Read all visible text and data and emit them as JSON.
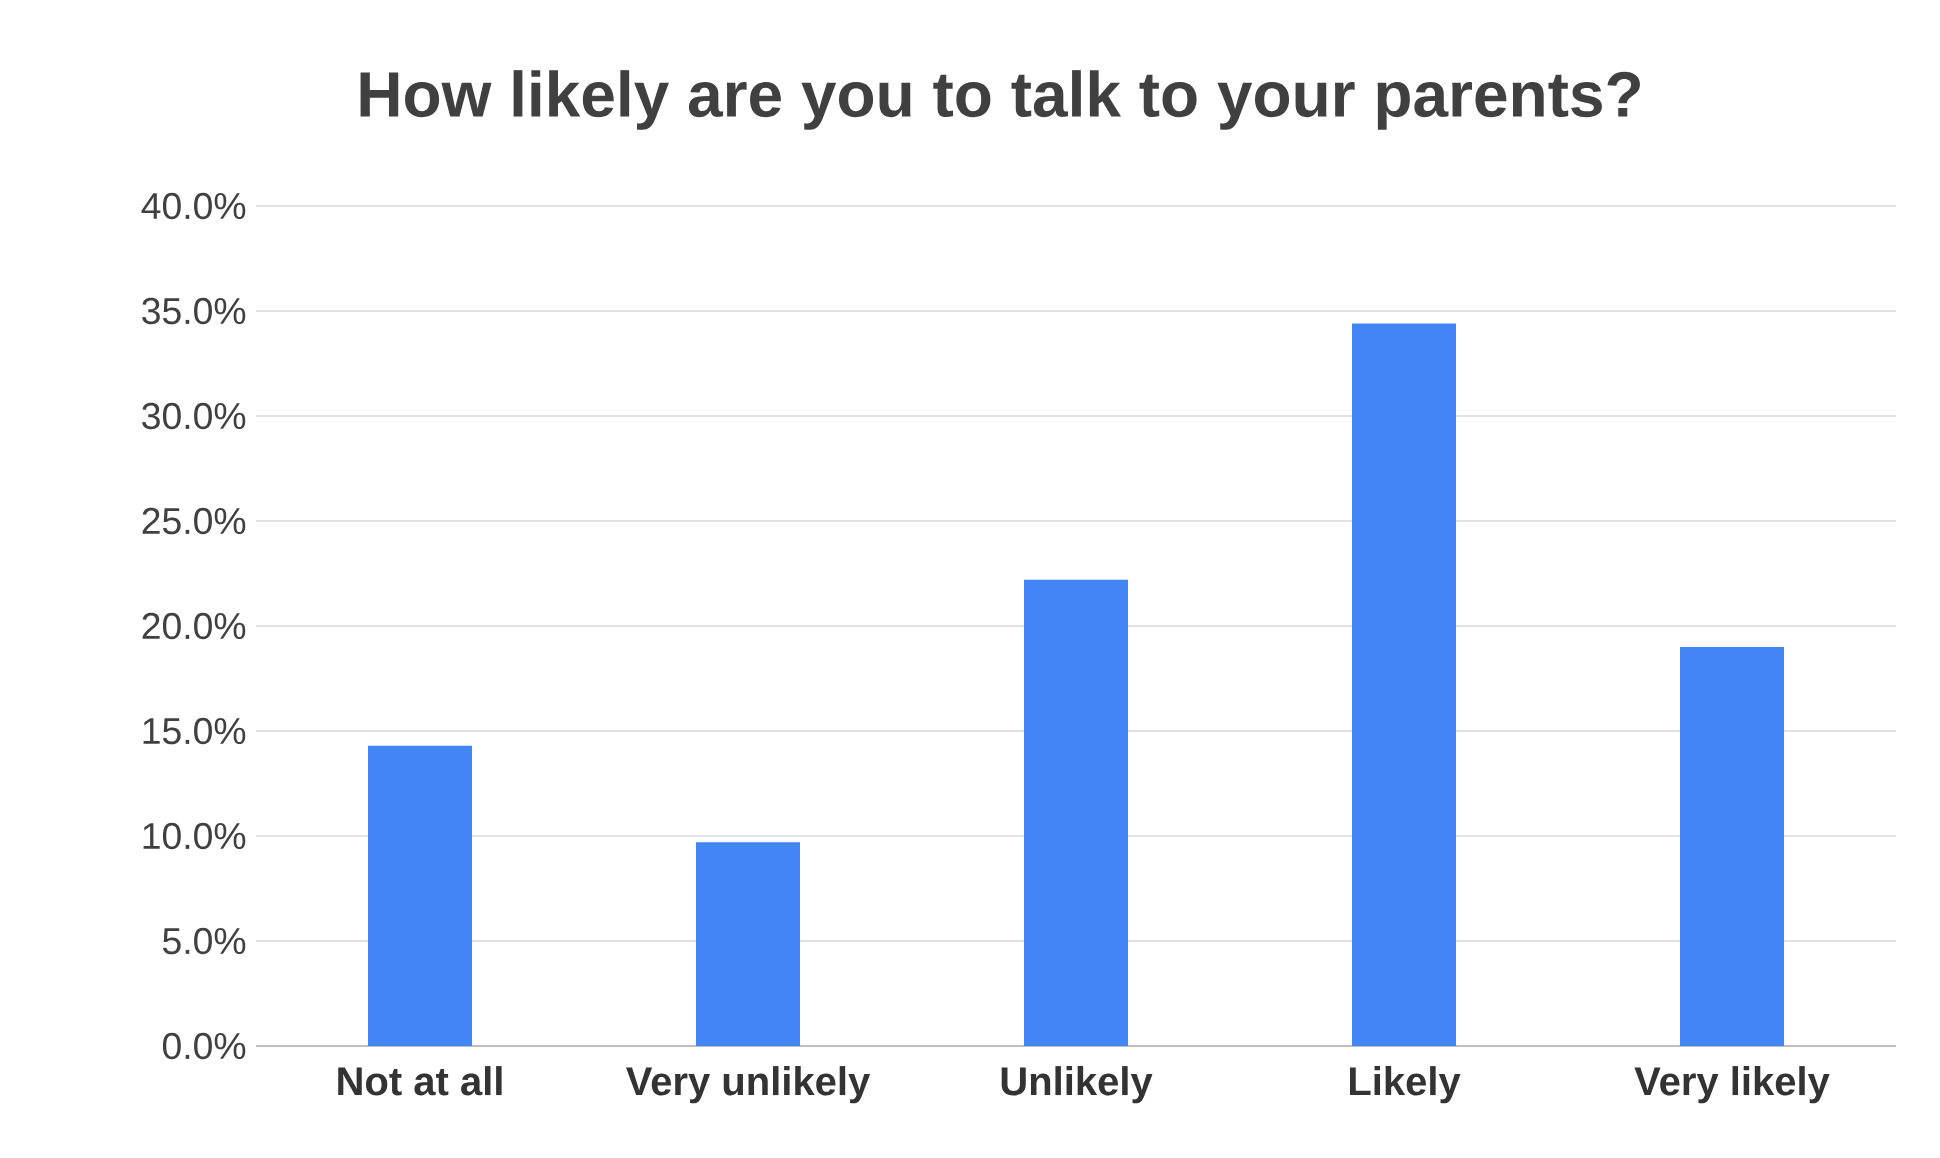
{
  "chart_data": {
    "type": "bar",
    "title": "How likely are you to talk to your parents?",
    "categories": [
      "Not at all",
      "Very unlikely",
      "Unlikely",
      "Likely",
      "Very likely"
    ],
    "values": [
      14.3,
      9.7,
      22.2,
      34.4,
      19.0
    ],
    "color": "#4285f4",
    "ylim": [
      0,
      40
    ],
    "yticks": [
      {
        "value": 0,
        "label": "0.0%"
      },
      {
        "value": 5,
        "label": "5.0%"
      },
      {
        "value": 10,
        "label": "10.0%"
      },
      {
        "value": 15,
        "label": "15.0%"
      },
      {
        "value": 20,
        "label": "20.0%"
      },
      {
        "value": 25,
        "label": "25.0%"
      },
      {
        "value": 30,
        "label": "30.0%"
      },
      {
        "value": 35,
        "label": "35.0%"
      },
      {
        "value": 40,
        "label": "40.0%"
      }
    ],
    "grid": "y"
  }
}
